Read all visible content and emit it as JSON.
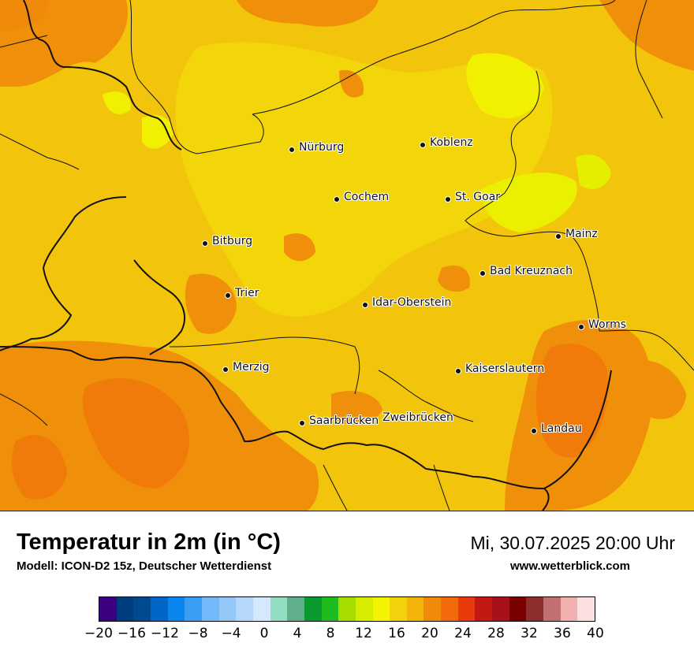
{
  "map": {
    "cities": [
      {
        "name": "Nürburg"
      },
      {
        "name": "Koblenz"
      },
      {
        "name": "Cochem"
      },
      {
        "name": "St. Goar"
      },
      {
        "name": "Bitburg"
      },
      {
        "name": "Mainz"
      },
      {
        "name": "Bad Kreuznach"
      },
      {
        "name": "Trier"
      },
      {
        "name": "Idar-Oberstein"
      },
      {
        "name": "Worms"
      },
      {
        "name": "Merzig"
      },
      {
        "name": "Kaiserslautern"
      },
      {
        "name": "Saarbrücken"
      },
      {
        "name": "Zweibrücken"
      },
      {
        "name": "Landau"
      }
    ]
  },
  "footer": {
    "title": "Temperatur in 2m (in °C)",
    "model": "Modell: ICON-D2 15z, Deutscher Wetterdienst",
    "datetime": "Mi, 30.07.2025 20:00 Uhr",
    "website": "www.wetterblick.com"
  },
  "legend": {
    "colors": [
      "#3b0080",
      "#003d7f",
      "#004a8f",
      "#0066c8",
      "#0a86f0",
      "#3a9ef5",
      "#73b8f8",
      "#94c8f8",
      "#b5d8fa",
      "#d6e8fc",
      "#92dcc2",
      "#5fb08a",
      "#0a9a2f",
      "#1fbc1f",
      "#a6dc00",
      "#d6ec00",
      "#f4f400",
      "#f2d20a",
      "#f2b40a",
      "#f08a0a",
      "#f26a0a",
      "#e83a0a",
      "#c01a12",
      "#a8101a",
      "#7a0000",
      "#8a2e2e",
      "#c07070",
      "#f0b0b0",
      "#fce0e0"
    ],
    "ticks": [
      "−20",
      "−16",
      "−12",
      "−8",
      "−4",
      "0",
      "4",
      "8",
      "12",
      "16",
      "20",
      "24",
      "28",
      "32",
      "36",
      "40"
    ],
    "min": -20,
    "max": 40
  }
}
